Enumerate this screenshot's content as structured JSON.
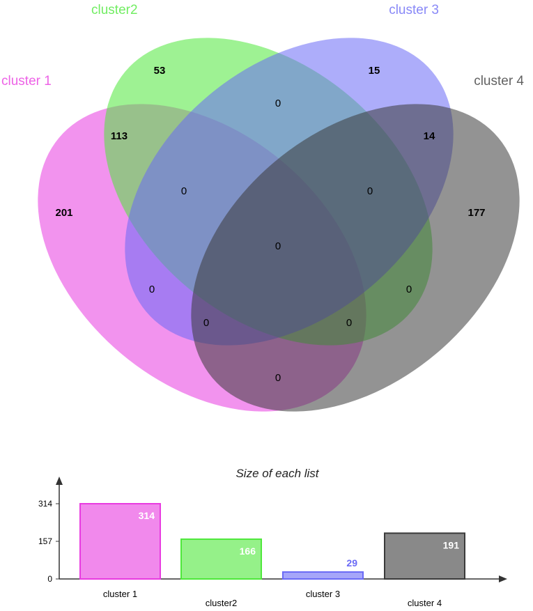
{
  "chart_data": [
    {
      "type": "venn",
      "sets": [
        {
          "name": "cluster 1",
          "color": "#e83be0"
        },
        {
          "name": "cluster2",
          "color": "#4ee83b"
        },
        {
          "name": "cluster 3",
          "color": "#6a6af5"
        },
        {
          "name": "cluster 4",
          "color": "#3a3a3a"
        }
      ],
      "regions": [
        {
          "sets": [
            "cluster 1"
          ],
          "value": 201
        },
        {
          "sets": [
            "cluster2"
          ],
          "value": 53
        },
        {
          "sets": [
            "cluster 3"
          ],
          "value": 15
        },
        {
          "sets": [
            "cluster 4"
          ],
          "value": 177
        },
        {
          "sets": [
            "cluster 1",
            "cluster2"
          ],
          "value": 113
        },
        {
          "sets": [
            "cluster 3",
            "cluster 4"
          ],
          "value": 14
        },
        {
          "sets": [
            "cluster2",
            "cluster 3"
          ],
          "value": 0
        },
        {
          "sets": [
            "cluster 1",
            "cluster2",
            "cluster 3"
          ],
          "value": 0
        },
        {
          "sets": [
            "cluster2",
            "cluster 3",
            "cluster 4"
          ],
          "value": 0
        },
        {
          "sets": [
            "cluster 1",
            "cluster2",
            "cluster 3",
            "cluster 4"
          ],
          "value": 0
        },
        {
          "sets": [
            "cluster 1",
            "cluster 3"
          ],
          "value": 0
        },
        {
          "sets": [
            "cluster2",
            "cluster 4"
          ],
          "value": 0
        },
        {
          "sets": [
            "cluster 1",
            "cluster 3",
            "cluster 4"
          ],
          "value": 0
        },
        {
          "sets": [
            "cluster 1",
            "cluster2",
            "cluster 4"
          ],
          "value": 0
        },
        {
          "sets": [
            "cluster 1",
            "cluster 4"
          ],
          "value": 0
        }
      ]
    },
    {
      "type": "bar",
      "title": "Size of each list",
      "categories": [
        "cluster 1",
        "cluster2",
        "cluster 3",
        "cluster 4"
      ],
      "values": [
        314,
        166,
        29,
        191
      ],
      "yticks": [
        "0",
        "157",
        "314"
      ],
      "ylim": [
        0,
        314
      ],
      "colors": [
        "#e83be0",
        "#4ee83b",
        "#6a6af5",
        "#3a3a3a"
      ]
    }
  ]
}
